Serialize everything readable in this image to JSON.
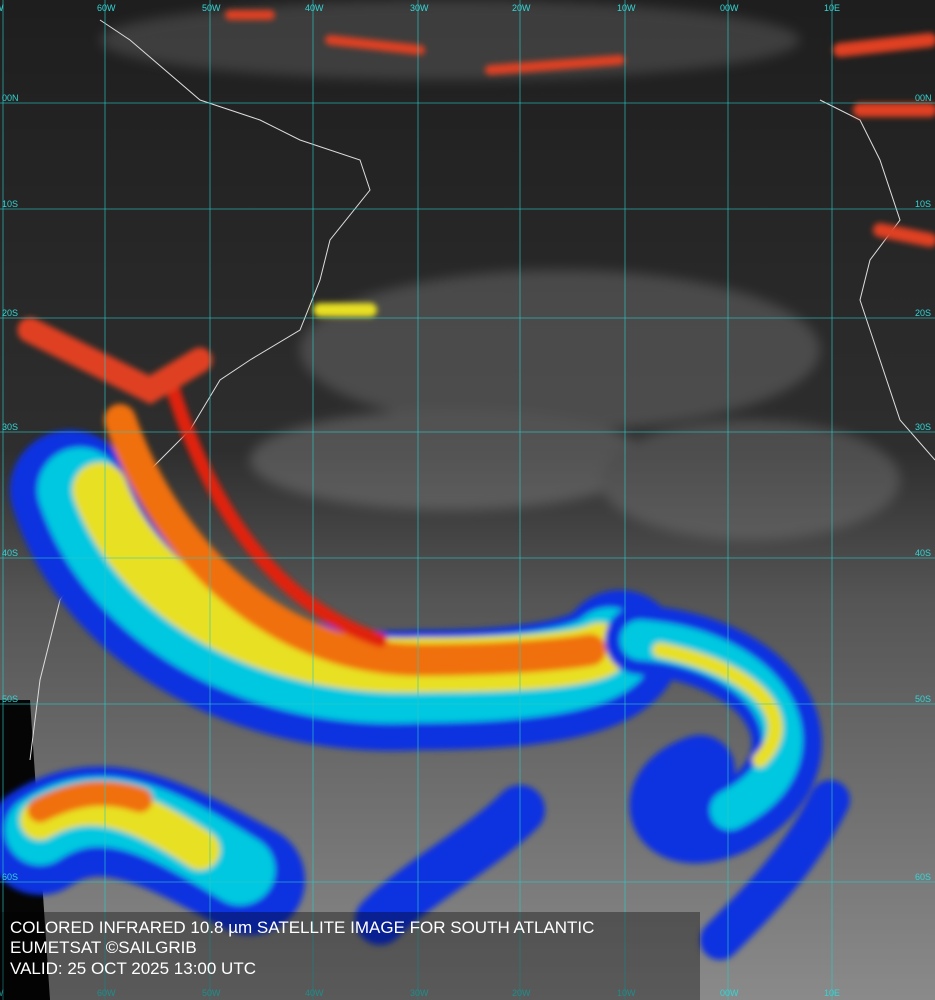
{
  "grid": {
    "longitudes": [
      "W",
      "60W",
      "50W",
      "40W",
      "30W",
      "20W",
      "10W",
      "00W",
      "10E"
    ],
    "latitudes": [
      "00N",
      "10S",
      "20S",
      "30S",
      "40S",
      "50S",
      "60S"
    ]
  },
  "caption": {
    "line1": "COLORED INFRARED 10.8 µm SATELLITE IMAGE FOR SOUTH ATLANTIC",
    "line2": "EUMETSAT ©SAILGRIB",
    "line3": "VALID:  25 OCT 2025 13:00 UTC"
  }
}
